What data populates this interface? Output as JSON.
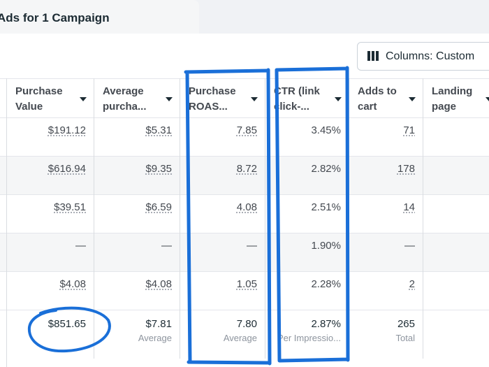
{
  "tab": {
    "title": "Ads for 1 Campaign"
  },
  "toolbar": {
    "columns_button": "Columns: Custom"
  },
  "table": {
    "headers": [
      "Purchase Value",
      "Average purcha...",
      "Purchase ROAS...",
      "CTR (link click-...",
      "Adds to cart",
      "Landing page views"
    ],
    "rows": [
      [
        "$191.12",
        "$5.31",
        "7.85",
        "3.45%",
        "71"
      ],
      [
        "$616.94",
        "$9.35",
        "8.72",
        "2.82%",
        "178"
      ],
      [
        "$39.51",
        "$6.59",
        "4.08",
        "2.51%",
        "14"
      ],
      [
        "—",
        "—",
        "—",
        "1.90%",
        "—"
      ],
      [
        "$4.08",
        "$4.08",
        "1.05",
        "2.28%",
        "2"
      ]
    ],
    "totals": [
      {
        "value": "$851.65"
      },
      {
        "value": "$7.81",
        "note": "Average"
      },
      {
        "value": "7.80",
        "note": "Average"
      },
      {
        "value": "2.87%",
        "note": "Per Impressio..."
      },
      {
        "value": "265",
        "note": "Total"
      }
    ]
  }
}
